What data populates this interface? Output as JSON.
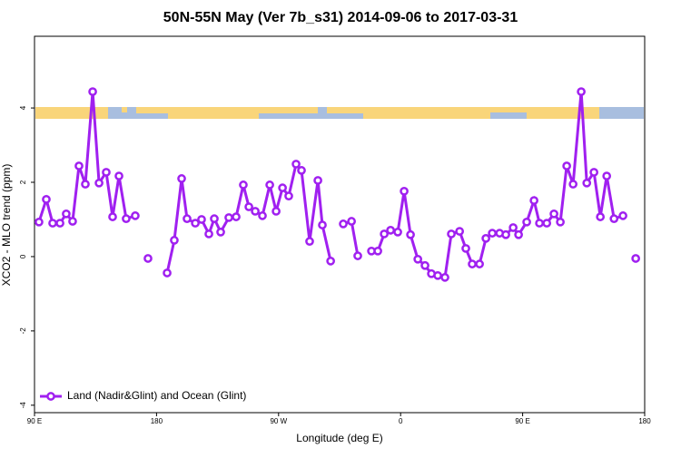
{
  "chart_data": {
    "type": "line",
    "title": "50N-55N May (Ver 7b_s31)   2014-09-06 to 2017-03-31",
    "xlabel": "Longitude (deg E)",
    "ylabel": "XCO2 - MLO trend (ppm)",
    "x": [
      93.3,
      98.7,
      103.4,
      108.8,
      113.4,
      118.1,
      122.8,
      127.5,
      132.9,
      137.6,
      142.9,
      147.6,
      152.3,
      157.6,
      164.3,
      null,
      173.7,
      null,
      187.8,
      193.1,
      198.5,
      202.5,
      208.6,
      213.2,
      218.6,
      222.6,
      227.3,
      233.3,
      238.7,
      244.0,
      248.1,
      252.8,
      258.1,
      263.5,
      268.2,
      272.9,
      277.5,
      282.9,
      286.9,
      292.9,
      299.0,
      302.3,
      308.4,
      null,
      317.7,
      323.8,
      328.4,
      null,
      338.5,
      343.2,
      347.9,
      352.6,
      357.9,
      362.6,
      367.3,
      372.7,
      378.0,
      382.7,
      387.4,
      392.7,
      397.4,
      403.5,
      408.1,
      412.8,
      418.2,
      422.9,
      427.6,
      433.0,
      437.6,
      443.0,
      447.0,
      453.0,
      458.4,
      462.4,
      467.8,
      473.1,
      477.8,
      482.5,
      487.2,
      493.2,
      497.3,
      502.6,
      507.3,
      512.0,
      517.4,
      524.0,
      null,
      533.4
    ],
    "series": [
      {
        "name": "Land (Nadir&Glint) and Ocean (Glint)",
        "color": "#a020f0",
        "values": [
          0.93,
          1.54,
          0.9,
          0.9,
          1.15,
          0.95,
          2.44,
          1.95,
          4.44,
          1.98,
          2.27,
          1.07,
          2.17,
          1.02,
          1.1,
          null,
          -0.05,
          null,
          -0.44,
          0.44,
          2.1,
          1.02,
          0.9,
          1.0,
          0.61,
          1.02,
          0.66,
          1.05,
          1.07,
          1.93,
          1.34,
          1.22,
          1.1,
          1.93,
          1.22,
          1.85,
          1.63,
          2.49,
          2.32,
          0.41,
          2.05,
          0.85,
          -0.12,
          null,
          0.88,
          0.95,
          0.02,
          null,
          0.15,
          0.15,
          0.61,
          0.71,
          0.66,
          1.76,
          0.59,
          -0.07,
          -0.24,
          -0.46,
          -0.51,
          -0.56,
          0.61,
          0.68,
          0.22,
          -0.2,
          -0.2,
          0.49,
          0.63,
          0.63,
          0.59,
          0.78,
          0.59,
          0.93,
          1.51,
          0.9,
          0.9,
          1.15,
          0.93,
          2.44,
          1.95,
          4.44,
          1.98,
          2.27,
          1.07,
          2.17,
          1.02,
          1.1,
          null,
          -0.05
        ]
      }
    ],
    "xlim": [
      90,
      540
    ],
    "xticks": [
      {
        "value": 90,
        "label": "90 E"
      },
      {
        "value": 180,
        "label": "180"
      },
      {
        "value": 270,
        "label": "90 W"
      },
      {
        "value": 360,
        "label": "0"
      },
      {
        "value": 450,
        "label": "90 E"
      },
      {
        "value": 540,
        "label": "180"
      }
    ],
    "ylim": [
      -4.2,
      5.93
    ],
    "yticks": [
      -4,
      -2,
      0,
      2,
      4
    ],
    "legend": "bottom-left"
  }
}
